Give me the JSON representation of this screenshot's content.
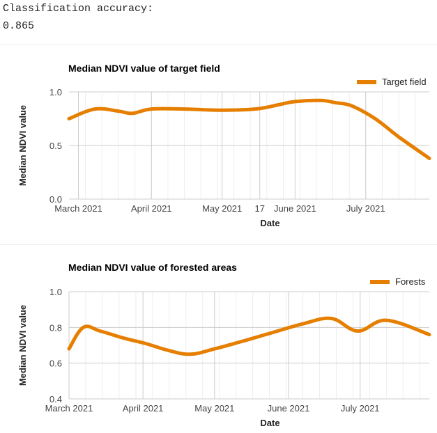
{
  "output": {
    "accuracy_label": "Classification accuracy:",
    "accuracy_value": "0.865"
  },
  "colors": {
    "series": "#e67e00",
    "grid": "#cccccc"
  },
  "chart_data": [
    {
      "type": "line",
      "title": "Median NDVI value of target field",
      "xlabel": "Date",
      "ylabel": "Median NDVI value",
      "ylim": [
        0,
        1
      ],
      "yticks": [
        "0.0",
        "0.5",
        "1.0"
      ],
      "xlim": [
        "2021-02-25",
        "2021-07-28"
      ],
      "xticks": [
        {
          "label": "March 2021",
          "date": "2021-03-01"
        },
        {
          "label": "April 2021",
          "date": "2021-04-01"
        },
        {
          "label": "May 2021",
          "date": "2021-05-01"
        },
        {
          "label": "17",
          "date": "2021-05-17"
        },
        {
          "label": "June 2021",
          "date": "2021-06-01"
        },
        {
          "label": "July 2021",
          "date": "2021-07-01"
        }
      ],
      "legend": "top-right",
      "series": [
        {
          "name": "Target field",
          "x": [
            "2021-02-25",
            "2021-03-08",
            "2021-03-18",
            "2021-03-24",
            "2021-04-01",
            "2021-04-15",
            "2021-04-30",
            "2021-05-15",
            "2021-05-25",
            "2021-06-01",
            "2021-06-12",
            "2021-06-18",
            "2021-06-25",
            "2021-07-05",
            "2021-07-15",
            "2021-07-28"
          ],
          "y": [
            0.75,
            0.84,
            0.82,
            0.8,
            0.84,
            0.84,
            0.83,
            0.84,
            0.88,
            0.91,
            0.92,
            0.9,
            0.87,
            0.75,
            0.58,
            0.38
          ]
        }
      ]
    },
    {
      "type": "line",
      "title": "Median NDVI value of forested areas",
      "xlabel": "Date",
      "ylabel": "Median NDVI value",
      "ylim": [
        0.4,
        1.0
      ],
      "yticks": [
        "0.4",
        "0.6",
        "0.8",
        "1.0"
      ],
      "xlim": [
        "2021-03-01",
        "2021-07-30"
      ],
      "xticks": [
        {
          "label": "March 2021",
          "date": "2021-03-01"
        },
        {
          "label": "April 2021",
          "date": "2021-04-01"
        },
        {
          "label": "May 2021",
          "date": "2021-05-01"
        },
        {
          "label": "June 2021",
          "date": "2021-06-01"
        },
        {
          "label": "July 2021",
          "date": "2021-07-01"
        }
      ],
      "legend": "top-right",
      "series": [
        {
          "name": "Forests",
          "x": [
            "2021-03-01",
            "2021-03-07",
            "2021-03-14",
            "2021-03-24",
            "2021-04-02",
            "2021-04-12",
            "2021-04-21",
            "2021-05-01",
            "2021-05-12",
            "2021-05-25",
            "2021-06-07",
            "2021-06-19",
            "2021-06-30",
            "2021-07-12",
            "2021-07-30"
          ],
          "y": [
            0.68,
            0.8,
            0.78,
            0.74,
            0.71,
            0.67,
            0.65,
            0.68,
            0.72,
            0.77,
            0.82,
            0.85,
            0.78,
            0.84,
            0.76
          ]
        }
      ]
    }
  ]
}
